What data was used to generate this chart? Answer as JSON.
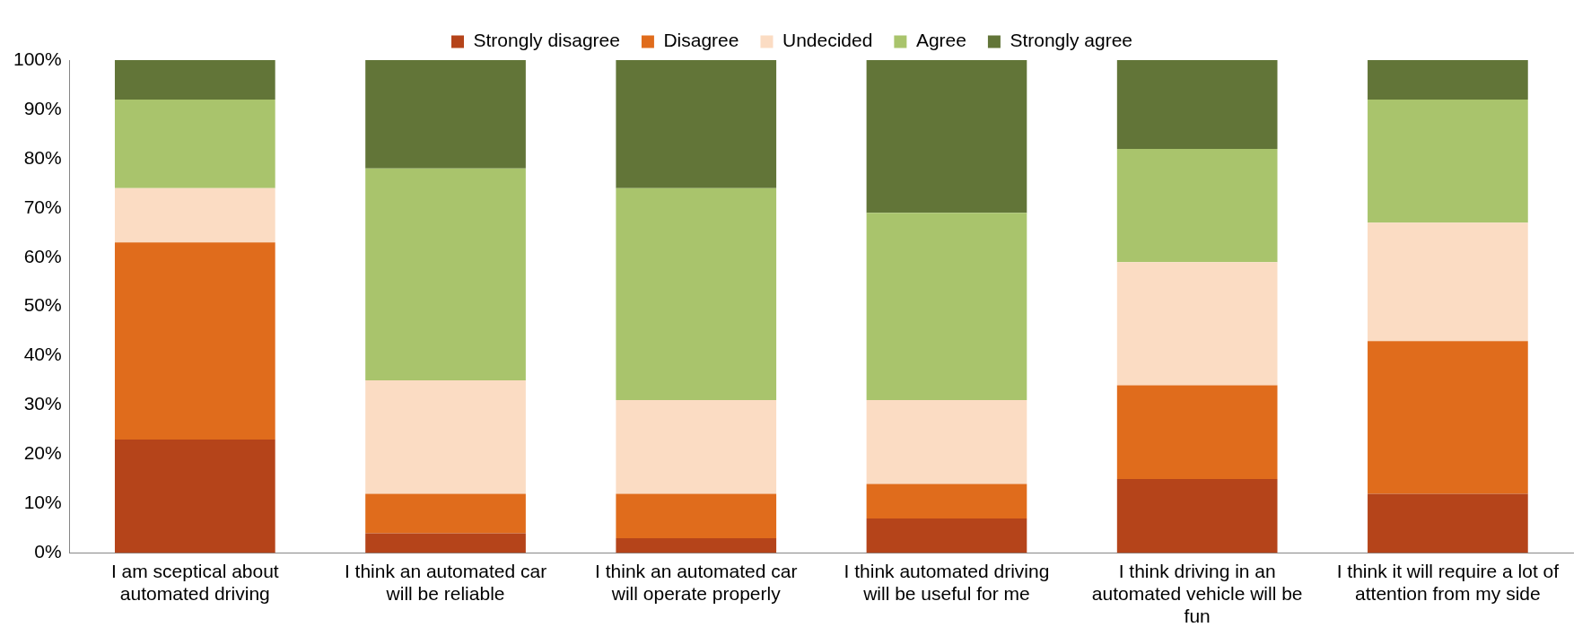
{
  "chart_data": {
    "type": "bar",
    "stacked": true,
    "legend": "top",
    "grid": false,
    "categories": [
      "I am sceptical about automated driving",
      "I think an automated car will be reliable",
      "I think an automated car will operate properly",
      "I think automated driving will be useful for me",
      "I think driving in an automated vehicle will be fun",
      "I think it will require a lot of attention from my side"
    ],
    "series": [
      {
        "name": "Strongly disagree",
        "color": "#b5441a",
        "values": [
          23,
          4,
          3,
          7,
          15,
          12
        ]
      },
      {
        "name": "Disagree",
        "color": "#e06c1c",
        "values": [
          40,
          8,
          9,
          7,
          19,
          31
        ]
      },
      {
        "name": "Undecided",
        "color": "#fbdcc3",
        "values": [
          11,
          23,
          19,
          17,
          25,
          24
        ]
      },
      {
        "name": "Agree",
        "color": "#a9c46c",
        "values": [
          18,
          43,
          43,
          38,
          23,
          25
        ]
      },
      {
        "name": "Strongly agree",
        "color": "#627538",
        "values": [
          8,
          22,
          26,
          31,
          18,
          8
        ]
      }
    ],
    "ylim": [
      0,
      100
    ],
    "yticks": [
      {
        "value": 0,
        "label": "0%"
      },
      {
        "value": 10,
        "label": "10%"
      },
      {
        "value": 20,
        "label": "20%"
      },
      {
        "value": 30,
        "label": "30%"
      },
      {
        "value": 40,
        "label": "40%"
      },
      {
        "value": 50,
        "label": "50%"
      },
      {
        "value": 60,
        "label": "60%"
      },
      {
        "value": 70,
        "label": "70%"
      },
      {
        "value": 80,
        "label": "80%"
      },
      {
        "value": 90,
        "label": "90%"
      },
      {
        "value": 100,
        "label": "100%"
      }
    ]
  }
}
